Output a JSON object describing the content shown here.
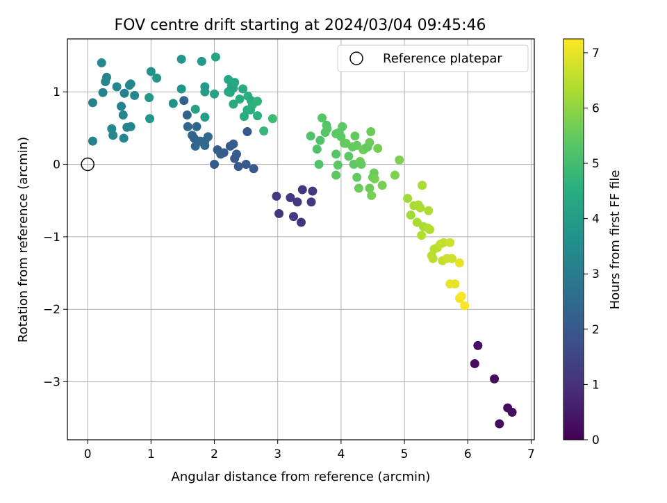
{
  "chart_data": {
    "type": "scatter",
    "title": "FOV centre drift starting at 2024/03/04 09:45:46",
    "xlabel": "Angular distance from reference (arcmin)",
    "ylabel": "Rotation from reference (arcmin)",
    "xlim": [
      -0.32,
      7.05
    ],
    "ylim": [
      -3.8,
      1.73
    ],
    "x_ticks": [
      "0",
      "1",
      "2",
      "3",
      "4",
      "5",
      "6",
      "7"
    ],
    "y_ticks": [
      "−3",
      "−2",
      "−1",
      "0",
      "1"
    ],
    "grid": true,
    "legend": {
      "position": "upper right",
      "label": "Reference platepar"
    },
    "reference_point": {
      "x": 0,
      "y": 0
    },
    "colorbar": {
      "label": "Hours from first FF file",
      "range": [
        0,
        7.25
      ],
      "ticks": [
        "0",
        "1",
        "2",
        "3",
        "4",
        "5",
        "6",
        "7"
      ],
      "colormap": "viridis"
    },
    "series": [
      {
        "points": [
          [
            6.5,
            -3.58,
            0.2
          ],
          [
            6.63,
            -3.36,
            0.2
          ],
          [
            6.7,
            -3.42,
            0.25
          ],
          [
            6.42,
            -2.96,
            0.2
          ],
          [
            6.11,
            -2.75,
            0.2
          ],
          [
            6.16,
            -2.5,
            0.3
          ],
          [
            2.98,
            -0.44,
            1.2
          ],
          [
            3.02,
            -0.68,
            1.1
          ],
          [
            3.2,
            -0.46,
            1.2
          ],
          [
            3.25,
            -0.72,
            1.2
          ],
          [
            3.31,
            -0.52,
            1.2
          ],
          [
            3.37,
            -0.8,
            1.1
          ],
          [
            3.39,
            -0.35,
            1.2
          ],
          [
            3.53,
            -0.52,
            1.2
          ],
          [
            3.55,
            -0.37,
            1.2
          ],
          [
            2.0,
            0.0,
            2.1
          ],
          [
            2.05,
            0.2,
            2.1
          ],
          [
            2.1,
            0.14,
            2.2
          ],
          [
            2.15,
            0.16,
            2.1
          ],
          [
            2.25,
            0.25,
            2.0
          ],
          [
            2.3,
            0.28,
            2.1
          ],
          [
            2.32,
            0.08,
            2.0
          ],
          [
            2.35,
            0.14,
            2.1
          ],
          [
            2.38,
            -0.03,
            2.0
          ],
          [
            2.5,
            0.0,
            2.0
          ],
          [
            2.52,
            0.45,
            2.0
          ],
          [
            2.62,
            -0.06,
            2.0
          ],
          [
            1.52,
            0.88,
            2.3
          ],
          [
            1.57,
            0.68,
            2.3
          ],
          [
            1.58,
            0.52,
            2.4
          ],
          [
            1.65,
            0.4,
            2.4
          ],
          [
            1.68,
            0.36,
            2.3
          ],
          [
            1.7,
            0.25,
            2.4
          ],
          [
            1.72,
            0.52,
            2.4
          ],
          [
            1.78,
            0.32,
            2.4
          ],
          [
            1.85,
            0.26,
            2.4
          ],
          [
            1.85,
            0.32,
            2.5
          ],
          [
            1.9,
            0.38,
            2.5
          ],
          [
            0.08,
            0.32,
            3.2
          ],
          [
            0.08,
            0.85,
            3.2
          ],
          [
            0.22,
            1.4,
            3.3
          ],
          [
            0.24,
            0.99,
            3.2
          ],
          [
            0.28,
            1.14,
            3.3
          ],
          [
            0.3,
            1.2,
            3.3
          ],
          [
            0.38,
            0.49,
            3.3
          ],
          [
            0.4,
            0.4,
            3.3
          ],
          [
            0.46,
            1.07,
            3.3
          ],
          [
            0.53,
            0.8,
            3.2
          ],
          [
            0.56,
            0.68,
            3.3
          ],
          [
            0.57,
            0.36,
            3.3
          ],
          [
            0.58,
            0.98,
            3.2
          ],
          [
            0.62,
            0.51,
            3.2
          ],
          [
            0.66,
            1.09,
            3.3
          ],
          [
            0.68,
            0.52,
            3.3
          ],
          [
            0.68,
            1.11,
            3.3
          ],
          [
            0.74,
            0.95,
            3.3
          ],
          [
            0.97,
            0.92,
            3.8
          ],
          [
            0.98,
            0.63,
            3.8
          ],
          [
            1.0,
            1.28,
            3.7
          ],
          [
            1.09,
            1.19,
            3.8
          ],
          [
            1.35,
            0.84,
            3.7
          ],
          [
            1.48,
            1.04,
            3.8
          ],
          [
            1.48,
            1.45,
            3.8
          ],
          [
            1.8,
            1.42,
            3.9
          ],
          [
            1.85,
            1.07,
            3.9
          ],
          [
            1.85,
            1.0,
            4.0
          ],
          [
            1.85,
            0.65,
            4.0
          ],
          [
            1.7,
            0.76,
            4.1
          ],
          [
            2.0,
            0.97,
            4.2
          ],
          [
            2.02,
            1.48,
            4.2
          ],
          [
            2.22,
            1.0,
            4.3
          ],
          [
            2.22,
            1.17,
            4.3
          ],
          [
            2.25,
            0.99,
            4.4
          ],
          [
            2.27,
            1.08,
            4.3
          ],
          [
            2.3,
            1.05,
            4.2
          ],
          [
            2.3,
            0.83,
            4.4
          ],
          [
            2.32,
            1.13,
            4.4
          ],
          [
            2.4,
            0.9,
            4.5
          ],
          [
            2.45,
            1.04,
            4.4
          ],
          [
            2.47,
            0.66,
            4.5
          ],
          [
            2.52,
            0.75,
            4.5
          ],
          [
            2.53,
            0.94,
            4.6
          ],
          [
            2.57,
            0.75,
            4.6
          ],
          [
            2.58,
            0.88,
            4.5
          ],
          [
            2.6,
            0.82,
            4.6
          ],
          [
            2.68,
            0.67,
            4.6
          ],
          [
            2.68,
            0.87,
            4.7
          ],
          [
            2.78,
            0.46,
            4.8
          ],
          [
            2.92,
            0.63,
            4.9
          ],
          [
            3.52,
            0.39,
            5.2
          ],
          [
            3.62,
            0.21,
            5.2
          ],
          [
            3.65,
            0.0,
            5.2
          ],
          [
            3.67,
            0.33,
            5.2
          ],
          [
            3.7,
            0.64,
            5.3
          ],
          [
            3.75,
            0.44,
            5.3
          ],
          [
            3.77,
            0.54,
            5.3
          ],
          [
            3.78,
            0.49,
            5.3
          ],
          [
            3.92,
            0.42,
            5.4
          ],
          [
            3.92,
            0.14,
            5.3
          ],
          [
            3.92,
            -0.15,
            5.4
          ],
          [
            3.95,
            -0.01,
            5.4
          ],
          [
            3.97,
            0.44,
            5.4
          ],
          [
            4.0,
            0.38,
            5.4
          ],
          [
            4.02,
            0.52,
            5.4
          ],
          [
            4.05,
            0.29,
            5.5
          ],
          [
            4.08,
            0.29,
            5.5
          ],
          [
            4.12,
            0.11,
            5.4
          ],
          [
            4.18,
            0.24,
            5.5
          ],
          [
            4.2,
            0.0,
            5.4
          ],
          [
            4.22,
            0.39,
            5.5
          ],
          [
            4.25,
            -0.18,
            5.5
          ],
          [
            4.25,
            0.26,
            5.5
          ],
          [
            4.28,
            -0.33,
            5.6
          ],
          [
            4.3,
            0.04,
            5.6
          ],
          [
            4.32,
            0.0,
            5.5
          ],
          [
            4.35,
            0.2,
            5.6
          ],
          [
            4.38,
            0.22,
            5.6
          ],
          [
            4.42,
            0.24,
            5.5
          ],
          [
            4.45,
            0.3,
            5.6
          ],
          [
            4.45,
            -0.33,
            5.6
          ],
          [
            4.47,
            0.45,
            5.6
          ],
          [
            4.48,
            -0.43,
            5.7
          ],
          [
            4.5,
            -0.18,
            5.6
          ],
          [
            4.52,
            -0.12,
            5.6
          ],
          [
            4.53,
            -0.2,
            5.7
          ],
          [
            4.58,
            0.22,
            5.7
          ],
          [
            4.65,
            -0.29,
            5.7
          ],
          [
            4.85,
            -0.15,
            5.8
          ],
          [
            4.92,
            0.06,
            5.8
          ],
          [
            5.05,
            -0.47,
            6.2
          ],
          [
            5.1,
            -0.7,
            6.2
          ],
          [
            5.15,
            -0.57,
            6.3
          ],
          [
            5.2,
            -0.8,
            6.3
          ],
          [
            5.22,
            -0.56,
            6.3
          ],
          [
            5.25,
            -0.6,
            6.3
          ],
          [
            5.27,
            -0.98,
            6.4
          ],
          [
            5.28,
            -0.29,
            6.3
          ],
          [
            5.3,
            -0.86,
            6.3
          ],
          [
            5.37,
            -0.88,
            6.4
          ],
          [
            5.38,
            -0.64,
            6.4
          ],
          [
            5.4,
            -0.9,
            6.4
          ],
          [
            5.43,
            -1.26,
            6.5
          ],
          [
            5.45,
            -1.3,
            6.5
          ],
          [
            5.47,
            -1.17,
            6.5
          ],
          [
            5.52,
            -1.15,
            6.5
          ],
          [
            5.57,
            -1.1,
            6.6
          ],
          [
            5.6,
            -1.33,
            6.6
          ],
          [
            5.62,
            -1.08,
            6.6
          ],
          [
            5.67,
            -1.3,
            6.7
          ],
          [
            5.72,
            -1.08,
            6.7
          ],
          [
            5.75,
            -1.3,
            6.7
          ],
          [
            5.72,
            -1.65,
            7.0
          ],
          [
            5.8,
            -1.65,
            7.0
          ],
          [
            5.87,
            -1.36,
            7.0
          ],
          [
            5.87,
            -1.85,
            7.1
          ],
          [
            5.9,
            -1.82,
            7.2
          ],
          [
            5.95,
            -1.95,
            7.2
          ]
        ]
      }
    ]
  }
}
